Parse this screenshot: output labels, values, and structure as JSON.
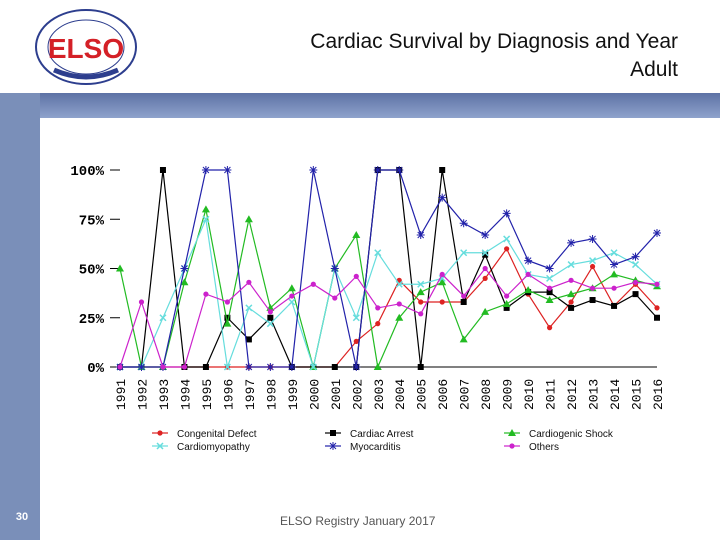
{
  "slide": {
    "title_line1": "Cardiac Survival by Diagnosis and Year",
    "title_line2": "Adult",
    "footer": "ELSO Registry January 2017",
    "page_number": "30",
    "logo_text": "ELSO"
  },
  "colors": {
    "sidebar": "#7a8fb9",
    "band": "#6f84b3",
    "logo_red": "#d42027",
    "logo_blue": "#2d3e8e"
  },
  "chart_data": {
    "type": "line",
    "title": "Cardiac Survival by Diagnosis and Year",
    "xlabel": "",
    "ylabel": "",
    "ylim": [
      0,
      100
    ],
    "y_ticks": [
      0,
      25,
      50,
      75,
      100
    ],
    "y_tick_labels": [
      "0%",
      "25%",
      "50%",
      "75%",
      "100%"
    ],
    "categories": [
      "1991",
      "1992",
      "1993",
      "1994",
      "1995",
      "1996",
      "1997",
      "1998",
      "1999",
      "2000",
      "2001",
      "2002",
      "2003",
      "2004",
      "2005",
      "2006",
      "2007",
      "2008",
      "2009",
      "2010",
      "2011",
      "2012",
      "2013",
      "2014",
      "2015",
      "2016"
    ],
    "legend_position": "bottom",
    "series": [
      {
        "name": "Congenital Defect",
        "color": "#dd2222",
        "marker": "dot",
        "values": [
          0,
          0,
          0,
          0,
          0,
          0,
          0,
          0,
          0,
          0,
          0,
          13,
          22,
          44,
          33,
          33,
          33,
          45,
          60,
          37,
          20,
          33,
          51,
          31,
          42,
          30
        ]
      },
      {
        "name": "Cardiac Arrest",
        "color": "#000000",
        "marker": "square",
        "values": [
          0,
          0,
          100,
          0,
          0,
          25,
          14,
          25,
          0,
          0,
          0,
          0,
          100,
          100,
          0,
          100,
          33,
          57,
          30,
          38,
          38,
          30,
          34,
          31,
          37,
          25
        ]
      },
      {
        "name": "Cardiogenic Shock",
        "color": "#22bb22",
        "marker": "triangle",
        "values": [
          50,
          0,
          0,
          43,
          80,
          22,
          75,
          30,
          40,
          0,
          50,
          67,
          0,
          25,
          38,
          43,
          14,
          28,
          32,
          39,
          34,
          37,
          40,
          47,
          44,
          41
        ]
      },
      {
        "name": "Cardiomyopathy",
        "color": "#66dddd",
        "marker": "x",
        "values": [
          0,
          0,
          25,
          50,
          75,
          0,
          30,
          22,
          33,
          0,
          50,
          25,
          58,
          42,
          42,
          45,
          58,
          58,
          65,
          47,
          45,
          52,
          54,
          58,
          52,
          42
        ]
      },
      {
        "name": "Myocarditis",
        "color": "#2222aa",
        "marker": "star",
        "values": [
          0,
          0,
          0,
          50,
          100,
          100,
          0,
          0,
          0,
          100,
          50,
          0,
          100,
          100,
          67,
          86,
          73,
          67,
          78,
          54,
          50,
          63,
          65,
          52,
          56,
          68
        ]
      },
      {
        "name": "Others",
        "color": "#cc22cc",
        "marker": "dot",
        "values": [
          0,
          33,
          0,
          0,
          37,
          33,
          43,
          28,
          36,
          42,
          35,
          46,
          30,
          32,
          27,
          47,
          36,
          50,
          36,
          47,
          40,
          44,
          40,
          40,
          43,
          42
        ]
      }
    ]
  }
}
